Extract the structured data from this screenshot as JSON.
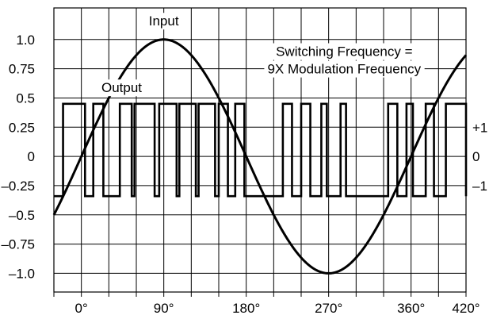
{
  "chart_data": {
    "type": "line",
    "title": "",
    "xlabel": "",
    "ylabel": "",
    "xlim": [
      -30,
      420
    ],
    "ylim": [
      -1.16,
      1.27
    ],
    "grid": true,
    "x_tick_labels": [
      {
        "x": 0,
        "label": "0°"
      },
      {
        "x": 90,
        "label": "90°"
      },
      {
        "x": 180,
        "label": "180°"
      },
      {
        "x": 270,
        "label": "270°"
      },
      {
        "x": 360,
        "label": "360°"
      },
      {
        "x": 420,
        "label": "420°"
      }
    ],
    "y_tick_labels": [
      {
        "y": 1.0,
        "label": "1.0"
      },
      {
        "y": 0.75,
        "label": "0.75"
      },
      {
        "y": 0.5,
        "label": "0.5"
      },
      {
        "y": 0.25,
        "label": "0.25"
      },
      {
        "y": 0,
        "label": "0"
      },
      {
        "y": -0.25,
        "label": "–0.25"
      },
      {
        "y": -0.5,
        "label": "–0.5"
      },
      {
        "y": -0.75,
        "label": "–0.75"
      },
      {
        "y": -1.0,
        "label": "–1.0"
      }
    ],
    "right_tick_labels": [
      {
        "y": 0.25,
        "label": "+1"
      },
      {
        "y": 0,
        "label": "0"
      },
      {
        "y": -0.25,
        "label": "–1"
      }
    ],
    "annotations": [
      {
        "text": "Input",
        "x": 90,
        "y": 1.16
      },
      {
        "text": "Output",
        "x": 44,
        "y": 0.59
      },
      {
        "text": "Switching Frequency =",
        "x": 287,
        "y": 0.9
      },
      {
        "text": "9X Modulation Frequency",
        "x": 287,
        "y": 0.75
      }
    ],
    "series": [
      {
        "name": "Input",
        "kind": "sine",
        "amplitude": 1.0,
        "period_deg": 360,
        "x_range": [
          -30,
          420
        ]
      },
      {
        "name": "Output",
        "kind": "step",
        "high": 0.45,
        "low": -0.34,
        "start": -30,
        "start_level": "low",
        "transitions": [
          -20,
          4,
          13,
          24,
          42,
          55,
          58,
          80,
          85,
          104,
          107,
          125,
          128,
          146,
          150,
          160,
          168,
          178,
          220,
          230,
          240,
          250,
          262,
          268,
          283,
          289,
          335,
          345,
          355,
          362,
          376,
          385,
          398,
          420
        ]
      }
    ]
  }
}
